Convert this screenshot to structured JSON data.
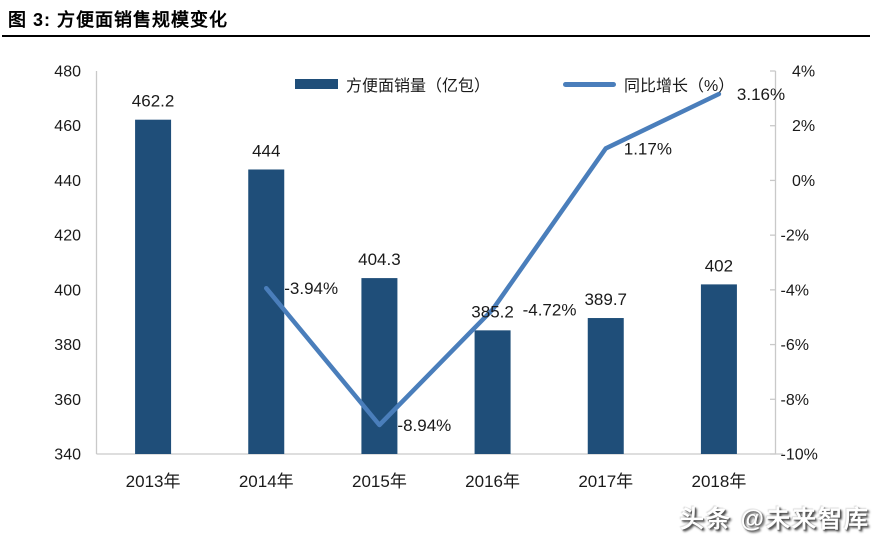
{
  "header": {
    "title": "图 3: 方便面销售规模变化"
  },
  "watermark": {
    "text": "头条 @未来智库"
  },
  "chart_data": {
    "type": "combo",
    "categories": [
      "2013年",
      "2014年",
      "2015年",
      "2016年",
      "2017年",
      "2018年"
    ],
    "series": [
      {
        "name": "方便面销量（亿包）",
        "type": "bar",
        "axis": "left",
        "color": "#1F4E79",
        "values": [
          462.2,
          444,
          404.3,
          385.2,
          389.7,
          402
        ],
        "labels": [
          "462.2",
          "444",
          "404.3",
          "385.2",
          "389.7",
          "402"
        ]
      },
      {
        "name": "同比增长（%）",
        "type": "line",
        "axis": "right",
        "color": "#4A7EBB",
        "values": [
          null,
          -3.94,
          -8.94,
          -4.72,
          1.17,
          3.16
        ],
        "labels": [
          null,
          "-3.94%",
          "-8.94%",
          "-4.72%",
          "1.17%",
          "3.16%"
        ]
      }
    ],
    "left_axis": {
      "min": 340,
      "max": 480,
      "step": 20,
      "ticks": [
        "480",
        "460",
        "440",
        "420",
        "400",
        "380",
        "360",
        "340"
      ]
    },
    "right_axis": {
      "min": -10,
      "max": 4,
      "step": 2,
      "ticks": [
        "4%",
        "2%",
        "0%",
        "-2%",
        "-4%",
        "-6%",
        "-8%",
        "-10%"
      ]
    },
    "legend_position": "top",
    "gridlines": false,
    "colors": {
      "axis_line": "#C9C9C9",
      "label_text": "#1a1a1a"
    }
  }
}
